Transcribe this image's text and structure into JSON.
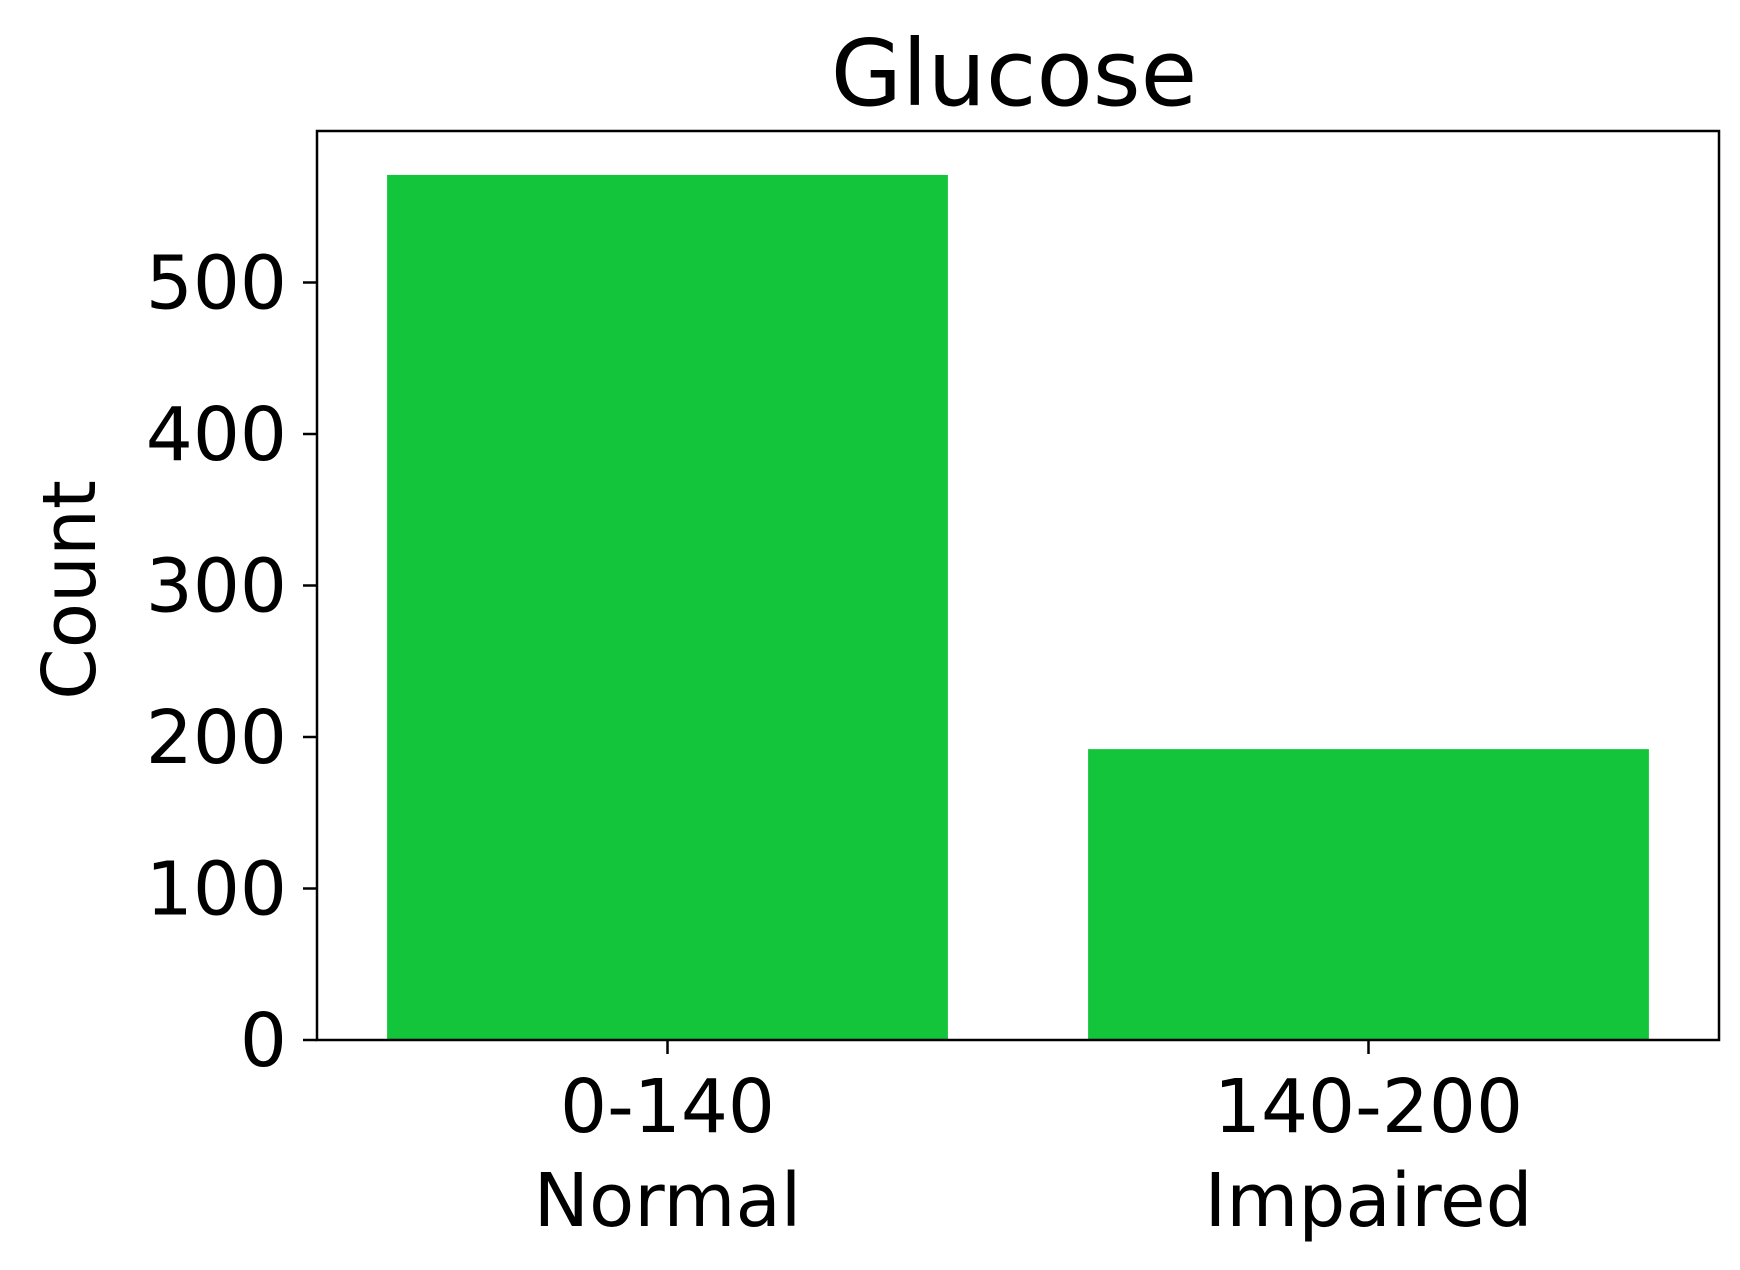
{
  "chart_data": {
    "type": "bar",
    "title": "Glucose",
    "xlabel": "",
    "ylabel": "Count",
    "categories": [
      {
        "range": "0-140",
        "label": "Normal"
      },
      {
        "range": "140-200",
        "label": "Impaired"
      }
    ],
    "values": [
      571,
      192
    ],
    "ylim": [
      0,
      600
    ],
    "yticks": [
      0,
      100,
      200,
      300,
      400,
      500
    ],
    "bar_color": "#12c53b",
    "grid": false,
    "legend": "none"
  }
}
